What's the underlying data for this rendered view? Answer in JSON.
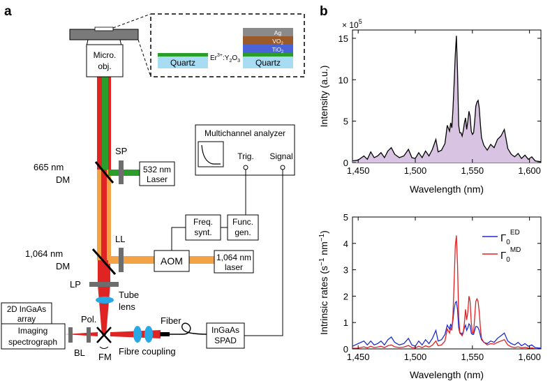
{
  "panels": {
    "a": "a",
    "b": "b"
  },
  "setup": {
    "micro_obj": [
      "Micro.",
      "obj."
    ],
    "inset_left_quartz": "Quartz",
    "inset_right_quartz": "Quartz",
    "inset_sample_prefix": "Er",
    "inset_sample_sup": "3+",
    "inset_sample_suffix": ":Y",
    "inset_sample_sub2": "2",
    "inset_sample_o": "O",
    "inset_sample_sub3": "3",
    "layer_ag": "Ag",
    "layer_vo2": "VO",
    "layer_tio2": "TiO",
    "layer_sub2": "2",
    "sp": "SP",
    "dm665": [
      "665 nm",
      "DM"
    ],
    "laser532": [
      "532 nm",
      "Laser"
    ],
    "multichannel": "Multichannel analyzer",
    "trig": "Trig.",
    "signal": "Signal",
    "freq_synt": [
      "Freq.",
      "synt."
    ],
    "func_gen": [
      "Func.",
      "gen."
    ],
    "ll": "LL",
    "dm1064": [
      "1,064 nm",
      "DM"
    ],
    "aom": "AOM",
    "laser1064": [
      "1,064 nm",
      "laser"
    ],
    "lp": "LP",
    "tube_lens": [
      "Tube",
      "lens"
    ],
    "ingaas_array": [
      "2D InGaAs",
      "array"
    ],
    "imaging_spectrograph": [
      "Imaging",
      "spectrograph"
    ],
    "pol": "Pol.",
    "bl": "BL",
    "fm": "FM",
    "fibre_coupling": "Fibre coupling",
    "fiber": "Fiber",
    "ingaas_spad": [
      "InGaAs",
      "SPAD"
    ]
  },
  "colors": {
    "green": "#2a9d2a",
    "red": "#e02424",
    "orange": "#f4a246",
    "light_blue": "#a8dcf2",
    "ag_gray": "#8a8a8a",
    "vo2_brown": "#9a5a2a",
    "tio2_blue": "#4a63d6",
    "lens_blue": "#29a8e6",
    "purple_fill": "#d8c4e2",
    "series_ed": "#1f2fd0",
    "series_md": "#e02020"
  },
  "chart_data": [
    {
      "type": "area",
      "title": "",
      "multiplier": "× 10",
      "multiplier_exp": "5",
      "xlabel": "Wavelength (nm)",
      "ylabel": "Intensity (a.u.)",
      "xlim": [
        1445,
        1610
      ],
      "ylim": [
        0,
        16
      ],
      "xticks": [
        1450,
        1500,
        1550,
        1600
      ],
      "xtick_labels": [
        "1,450",
        "1,500",
        "1,550",
        "1,600"
      ],
      "yticks": [
        0,
        5,
        10,
        15
      ],
      "ytick_labels": [
        "0",
        "5",
        "10",
        "15"
      ],
      "series": [
        {
          "name": "Intensity",
          "x": [
            1445,
            1450,
            1455,
            1458,
            1461,
            1464,
            1467,
            1470,
            1473,
            1476,
            1479,
            1482,
            1486,
            1490,
            1494,
            1497,
            1500,
            1503,
            1506,
            1509,
            1512,
            1515,
            1518,
            1520,
            1523,
            1526,
            1528,
            1530,
            1531,
            1532,
            1533,
            1534,
            1535,
            1536,
            1537,
            1538,
            1539,
            1540,
            1541,
            1542,
            1543,
            1544,
            1545,
            1546,
            1547,
            1548,
            1549,
            1550,
            1551,
            1552,
            1553,
            1554,
            1555,
            1556,
            1557,
            1558,
            1560,
            1563,
            1566,
            1569,
            1572,
            1575,
            1578,
            1581,
            1584,
            1587,
            1590,
            1593,
            1596,
            1599,
            1602,
            1605,
            1610
          ],
          "values": [
            0.2,
            0.3,
            0.8,
            0.4,
            1.3,
            0.6,
            0.8,
            1.2,
            0.6,
            1.4,
            1.8,
            1.0,
            0.6,
            0.8,
            1.6,
            0.6,
            0.5,
            1.2,
            0.6,
            1.4,
            0.8,
            1.6,
            2.8,
            1.3,
            1.5,
            2.3,
            4.5,
            3.8,
            4.8,
            4.2,
            6.5,
            9.5,
            13.0,
            15.3,
            11.0,
            4.5,
            3.6,
            3.6,
            3.2,
            3.8,
            4.8,
            5.4,
            4.0,
            5.0,
            6.2,
            5.6,
            3.8,
            3.4,
            3.6,
            5.0,
            6.8,
            7.3,
            7.5,
            6.6,
            4.6,
            3.0,
            2.1,
            1.5,
            2.2,
            1.8,
            2.8,
            3.2,
            4.0,
            1.7,
            1.0,
            0.7,
            1.1,
            0.5,
            0.9,
            0.4,
            0.7,
            0.2,
            0.1
          ]
        }
      ]
    },
    {
      "type": "line",
      "title": "",
      "xlabel": "Wavelength (nm)",
      "ylabel": "Intrinsic rates (s",
      "ylabel_sup1": "−1",
      "ylabel_mid": " nm",
      "ylabel_sup2": "−1",
      "ylabel_end": ")",
      "xlim": [
        1445,
        1610
      ],
      "ylim": [
        0,
        5
      ],
      "xticks": [
        1450,
        1500,
        1550,
        1600
      ],
      "xtick_labels": [
        "1,450",
        "1,500",
        "1,550",
        "1,600"
      ],
      "yticks": [
        0,
        1,
        2,
        3,
        4,
        5
      ],
      "ytick_labels": [
        "0",
        "1",
        "2",
        "3",
        "4",
        "5"
      ],
      "legend": {
        "placement": "top-right",
        "entries": [
          {
            "symbol": "Γ",
            "sub": "0",
            "sup": "ED"
          },
          {
            "symbol": "Γ",
            "sub": "0",
            "sup": "MD"
          }
        ]
      },
      "series": [
        {
          "name": "Γ0 ED",
          "x": [
            1445,
            1450,
            1455,
            1458,
            1461,
            1464,
            1467,
            1470,
            1473,
            1476,
            1479,
            1482,
            1486,
            1490,
            1494,
            1497,
            1500,
            1503,
            1506,
            1509,
            1512,
            1515,
            1518,
            1520,
            1523,
            1526,
            1528,
            1530,
            1531,
            1532,
            1533,
            1534,
            1535,
            1536,
            1537,
            1538,
            1539,
            1540,
            1541,
            1542,
            1543,
            1544,
            1545,
            1546,
            1547,
            1548,
            1549,
            1550,
            1551,
            1552,
            1553,
            1554,
            1555,
            1556,
            1557,
            1558,
            1560,
            1563,
            1566,
            1569,
            1572,
            1575,
            1578,
            1581,
            1584,
            1587,
            1590,
            1593,
            1596,
            1599,
            1602,
            1605,
            1610
          ],
          "values": [
            0.1,
            0.2,
            0.3,
            0.15,
            0.3,
            0.15,
            0.2,
            0.3,
            0.15,
            0.35,
            0.45,
            0.25,
            0.15,
            0.2,
            0.4,
            0.15,
            0.1,
            0.3,
            0.15,
            0.35,
            0.2,
            0.4,
            0.7,
            0.3,
            0.35,
            0.55,
            0.9,
            0.75,
            0.95,
            0.8,
            1.1,
            1.5,
            1.75,
            1.8,
            1.5,
            0.8,
            0.6,
            0.6,
            0.55,
            0.65,
            0.8,
            0.9,
            0.7,
            0.8,
            0.95,
            0.9,
            0.6,
            0.55,
            0.55,
            0.7,
            0.85,
            0.85,
            0.8,
            0.7,
            0.5,
            0.35,
            0.25,
            0.2,
            0.3,
            0.25,
            0.4,
            0.5,
            0.6,
            0.3,
            0.2,
            0.15,
            0.25,
            0.12,
            0.2,
            0.1,
            0.15,
            0.05,
            0.03
          ]
        },
        {
          "name": "Γ0 MD",
          "x": [
            1445,
            1450,
            1455,
            1458,
            1461,
            1464,
            1467,
            1470,
            1473,
            1476,
            1479,
            1482,
            1486,
            1490,
            1494,
            1497,
            1500,
            1503,
            1506,
            1509,
            1512,
            1515,
            1518,
            1520,
            1523,
            1526,
            1528,
            1530,
            1531,
            1532,
            1533,
            1534,
            1535,
            1536,
            1537,
            1538,
            1539,
            1540,
            1541,
            1542,
            1543,
            1544,
            1545,
            1546,
            1547,
            1548,
            1549,
            1550,
            1551,
            1552,
            1553,
            1554,
            1555,
            1556,
            1557,
            1558,
            1560,
            1563,
            1566,
            1569,
            1572,
            1575,
            1578,
            1581,
            1584,
            1587,
            1590,
            1593,
            1596,
            1599,
            1602,
            1605,
            1610
          ],
          "values": [
            0.02,
            0.03,
            0.08,
            0.04,
            0.1,
            0.05,
            0.07,
            0.1,
            0.05,
            0.12,
            0.15,
            0.08,
            0.05,
            0.07,
            0.13,
            0.05,
            0.04,
            0.1,
            0.05,
            0.12,
            0.07,
            0.14,
            0.3,
            0.12,
            0.15,
            0.3,
            0.75,
            0.6,
            0.8,
            0.7,
            1.3,
            2.5,
            3.9,
            4.3,
            3.2,
            1.2,
            0.6,
            0.55,
            0.5,
            0.6,
            1.0,
            1.5,
            1.1,
            1.4,
            2.0,
            1.8,
            1.0,
            0.6,
            0.6,
            1.2,
            1.8,
            1.9,
            1.8,
            1.4,
            0.8,
            0.4,
            0.25,
            0.15,
            0.2,
            0.18,
            0.25,
            0.3,
            0.35,
            0.15,
            0.08,
            0.05,
            0.08,
            0.04,
            0.06,
            0.03,
            0.04,
            0.01,
            0.01
          ]
        }
      ]
    }
  ]
}
